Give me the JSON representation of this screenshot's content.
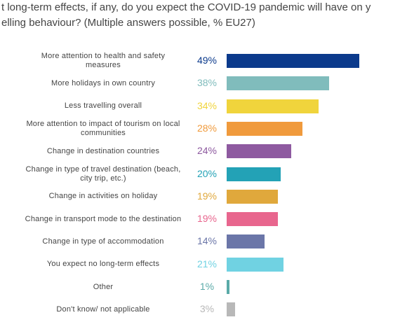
{
  "chart_data": {
    "type": "hbar",
    "title": [
      "t long-term effects, if any, do you expect the COVID-19 pandemic will have on y",
      "elling behaviour? (Multiple answers possible, % EU27)"
    ],
    "categories": [
      "More attention to health and safety measures",
      "More holidays in own country",
      "Less travelling overall",
      "More attention to impact of tourism on local communities",
      "Change in destination countries",
      "Change in type of travel destination (beach, city trip, etc.)",
      "Change in activities on holiday",
      "Change in transport mode to the destination",
      "Change in type of accommodation",
      "You expect no long-term effects",
      "Other",
      "Don't know/ not applicable"
    ],
    "values": [
      49,
      38,
      34,
      28,
      24,
      20,
      19,
      19,
      14,
      21,
      1,
      3
    ],
    "value_labels": [
      "49%",
      "38%",
      "34%",
      "28%",
      "24%",
      "20%",
      "19%",
      "19%",
      "14%",
      "21%",
      "1%",
      "3%"
    ],
    "colors": [
      "#0b3a8c",
      "#80bcbc",
      "#f0d43c",
      "#f09a3c",
      "#8e5aa0",
      "#23a2b6",
      "#e0a83c",
      "#e8668e",
      "#6b76a8",
      "#70d2e2",
      "#5aaaa8",
      "#b8b8b8"
    ]
  }
}
